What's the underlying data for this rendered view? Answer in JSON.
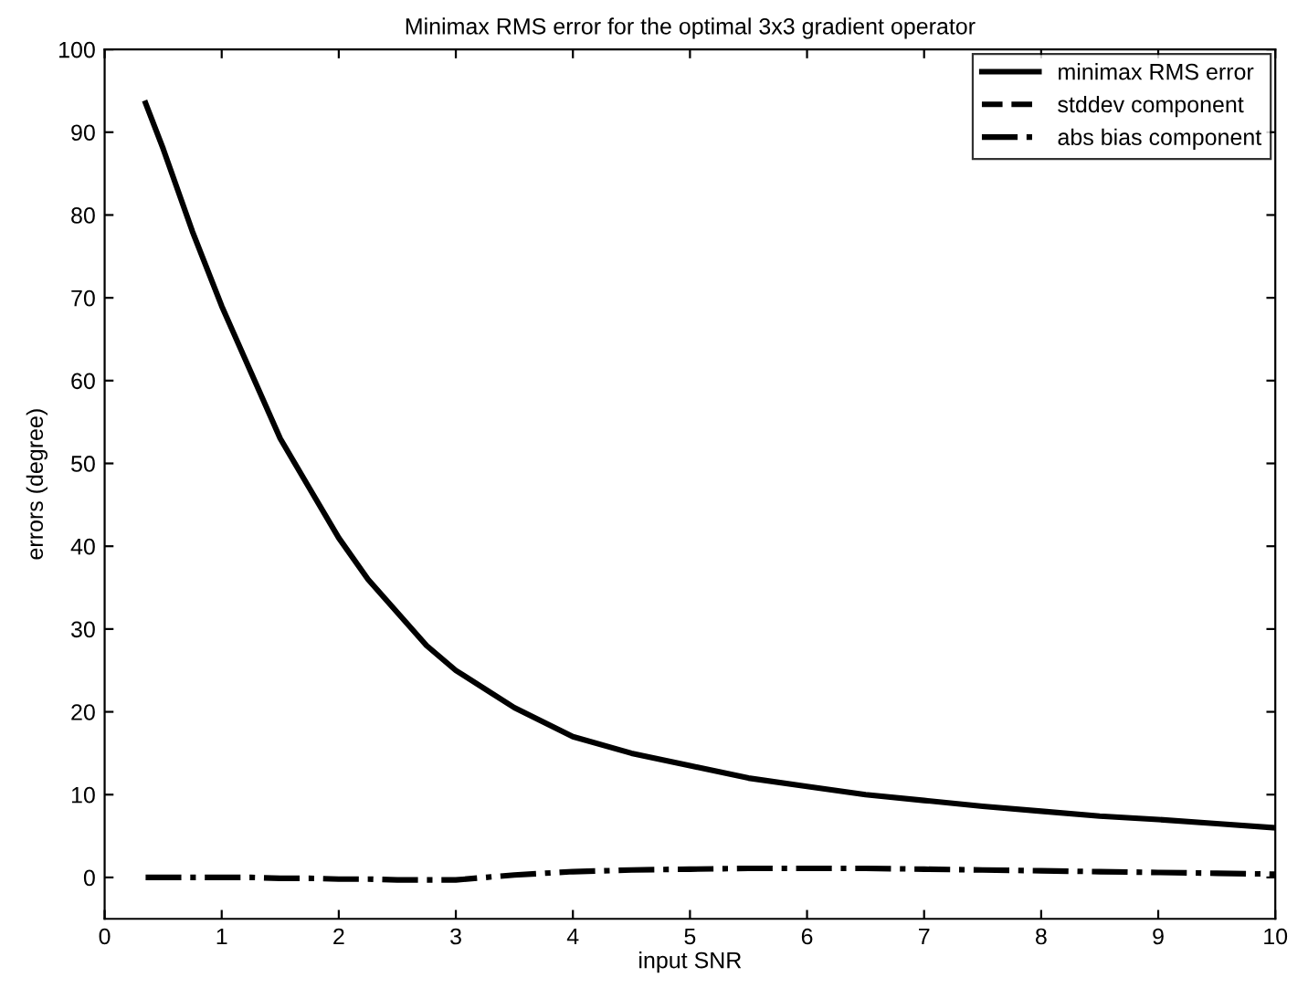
{
  "chart_data": {
    "type": "line",
    "title": "Minimax RMS error for the optimal 3x3 gradient operator",
    "xlabel": "input SNR",
    "ylabel": "errors (degree)",
    "x": [
      0.35,
      0.5,
      0.75,
      1,
      1.25,
      1.5,
      1.75,
      2,
      2.25,
      2.5,
      2.75,
      3,
      3.5,
      4,
      4.5,
      5,
      5.5,
      6,
      6.5,
      7,
      7.5,
      8,
      8.5,
      9,
      9.5,
      10
    ],
    "series": [
      {
        "name": "minimax RMS error",
        "color": "#000000",
        "line_style": "solid",
        "values": [
          93.5,
          88,
          78,
          69,
          61,
          53,
          47,
          41,
          36,
          32,
          28,
          25,
          20.5,
          17,
          15,
          13.5,
          12,
          11,
          10,
          9.3,
          8.6,
          8,
          7.4,
          7,
          6.5,
          6
        ]
      },
      {
        "name": "stddev component",
        "color": "#000000",
        "line_style": "dashed",
        "values": [
          null,
          null,
          null,
          null,
          null,
          null,
          null,
          null,
          null,
          null,
          null,
          null,
          null,
          null,
          null,
          null,
          null,
          null,
          null,
          null,
          null,
          null,
          null,
          null,
          null,
          null
        ]
      },
      {
        "name": "abs bias component",
        "color": "#000000",
        "line_style": "dashdot",
        "values": [
          0,
          0,
          0,
          0,
          0,
          -0.1,
          -0.1,
          -0.2,
          -0.2,
          -0.3,
          -0.3,
          -0.3,
          0.3,
          0.7,
          0.9,
          1,
          1.1,
          1.1,
          1.1,
          1,
          0.9,
          0.8,
          0.7,
          0.6,
          0.5,
          0.4
        ]
      }
    ],
    "xlim": [
      0,
      10
    ],
    "ylim": [
      -5,
      100
    ],
    "xticks": [
      0,
      1,
      2,
      3,
      4,
      5,
      6,
      7,
      8,
      9,
      10
    ],
    "yticks": [
      0,
      10,
      20,
      30,
      40,
      50,
      60,
      70,
      80,
      90,
      100
    ],
    "grid": false,
    "legend": "top right"
  }
}
